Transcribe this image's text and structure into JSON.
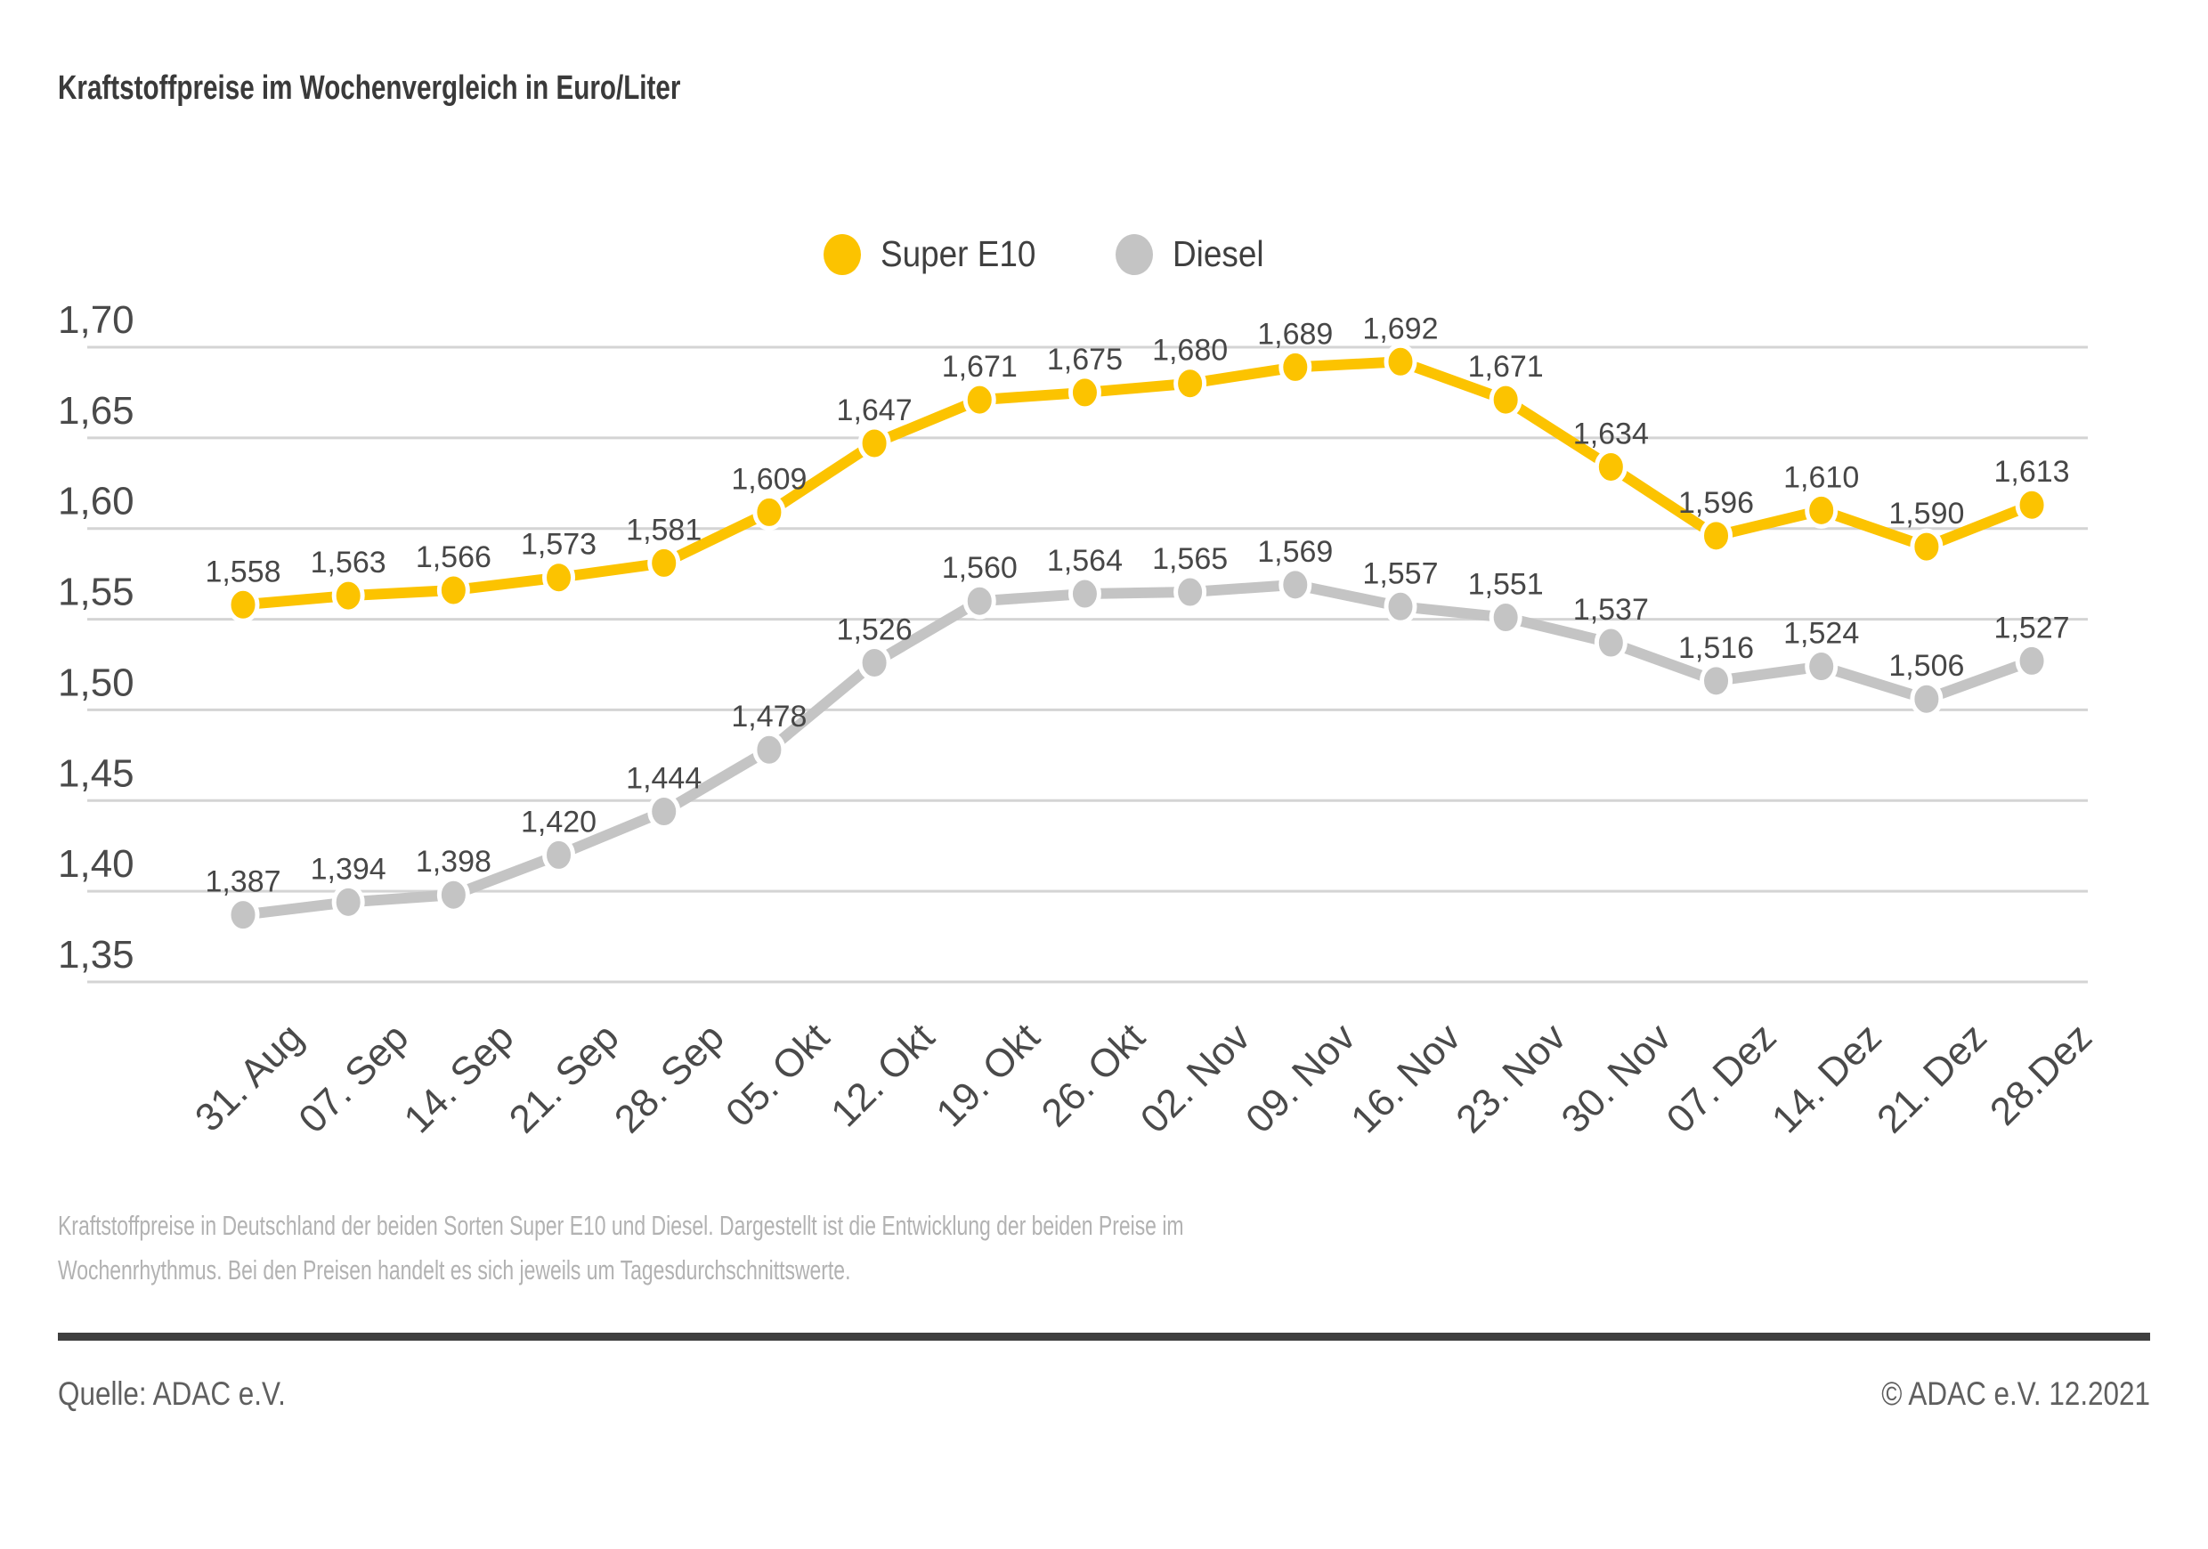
{
  "header": {
    "title": "Kraftstoffpreise im Wochenvergleich in Euro/Liter"
  },
  "chart_data": {
    "type": "line",
    "title": "Kraftstoffpreise im Wochenvergleich in Euro/Liter",
    "xlabel": "",
    "ylabel": "Euro/Liter",
    "grid": true,
    "legend_position": "top-center",
    "ylim": [
      1.35,
      1.7
    ],
    "yticks": [
      1.7,
      1.65,
      1.6,
      1.55,
      1.5,
      1.45,
      1.4,
      1.35
    ],
    "decimal_separator": ",",
    "categories": [
      "31. Aug",
      "07. Sep",
      "14. Sep",
      "21. Sep",
      "28. Sep",
      "05. Okt",
      "12. Okt",
      "19. Okt",
      "26. Okt",
      "02. Nov",
      "09. Nov",
      "16. Nov",
      "23. Nov",
      "30. Nov",
      "07. Dez",
      "14. Dez",
      "21. Dez",
      "28.Dez"
    ],
    "series": [
      {
        "name": "Super E10",
        "color": "#fcc300",
        "values": [
          1.558,
          1.563,
          1.566,
          1.573,
          1.581,
          1.609,
          1.647,
          1.671,
          1.675,
          1.68,
          1.689,
          1.692,
          1.671,
          1.634,
          1.596,
          1.61,
          1.59,
          1.613
        ]
      },
      {
        "name": "Diesel",
        "color": "#c4c4c4",
        "values": [
          1.387,
          1.394,
          1.398,
          1.42,
          1.444,
          1.478,
          1.526,
          1.56,
          1.564,
          1.565,
          1.569,
          1.557,
          1.551,
          1.537,
          1.516,
          1.524,
          1.506,
          1.527
        ]
      }
    ],
    "colors": {
      "grid_line": "#d4d4d4",
      "tick_label": "#4a4a4a",
      "value_label": "#474747",
      "marker_halo": "#ffffff"
    }
  },
  "caption": {
    "line1": "Kraftstoffpreise in Deutschland der beiden Sorten Super E10 und Diesel. Dargestellt ist die Entwicklung der beiden Preise im",
    "line2": "Wochenrhythmus. Bei den Preisen handelt es sich jeweils um Tagesdurchschnittswerte."
  },
  "footer": {
    "source": "Quelle: ADAC e.V.",
    "copyright": "© ADAC e.V. 12.2021"
  }
}
